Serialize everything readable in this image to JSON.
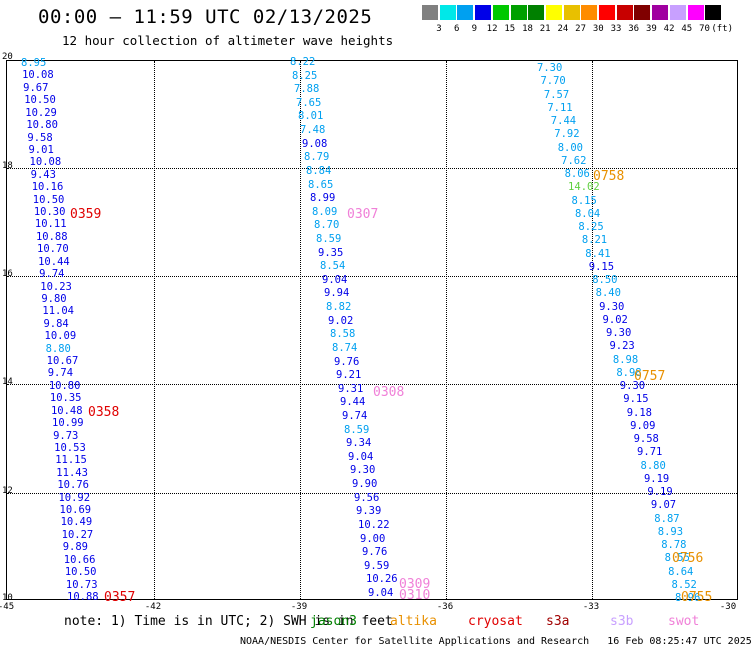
{
  "header": {
    "title": "00:00 – 11:59 UTC 02/13/2025",
    "subtitle": "12 hour collection of altimeter wave heights"
  },
  "scale": {
    "colors": [
      "#808080",
      "#00e8e8",
      "#00a0f0",
      "#0000e8",
      "#00c800",
      "#00a000",
      "#008000",
      "#ffff00",
      "#e8c000",
      "#ff8c00",
      "#ff0000",
      "#c80000",
      "#800000",
      "#a000a0",
      "#c8a0ff",
      "#ff00ff",
      "#000000"
    ],
    "labels": [
      "3",
      "6",
      "9",
      "12",
      "15",
      "18",
      "21",
      "24",
      "27",
      "30",
      "33",
      "36",
      "39",
      "42",
      "45",
      "70",
      "(ft)"
    ]
  },
  "axes": {
    "x_ticks": [
      "-45",
      "-42",
      "-39",
      "-36",
      "-33",
      "-30"
    ],
    "y_ticks": [
      "20",
      "18",
      "16",
      "14",
      "12",
      "10"
    ]
  },
  "tracks": [
    {
      "values": [
        "8.95",
        "10.08",
        "9.67",
        "10.50",
        "10.29",
        "10.80",
        "9.58",
        "9.01",
        "10.08",
        "9.43",
        "10.16",
        "10.50",
        "10.30",
        "10.11",
        "10.88",
        "10.70",
        "10.44",
        "9.74",
        "10.23",
        "9.80",
        "11.04",
        "9.84",
        "10.09",
        "8.80",
        "10.67",
        "9.74",
        "10.80",
        "10.35",
        "10.48",
        "10.99",
        "9.73",
        "10.53",
        "11.15",
        "11.43",
        "10.76",
        "10.92",
        "10.69",
        "10.49",
        "10.27",
        "9.89",
        "10.66",
        "10.50",
        "10.73",
        "10.88"
      ],
      "colors": [
        "#00a0f0",
        "#0000e8",
        "#0000e8",
        "#0000e8",
        "#0000e8",
        "#0000e8",
        "#0000e8",
        "#0000e8",
        "#0000e8",
        "#0000e8",
        "#0000e8",
        "#0000e8",
        "#0000e8",
        "#0000e8",
        "#0000e8",
        "#0000e8",
        "#0000e8",
        "#0000e8",
        "#0000e8",
        "#0000e8",
        "#0000e8",
        "#0000e8",
        "#0000e8",
        "#00a0f0",
        "#0000e8",
        "#0000e8",
        "#0000e8",
        "#0000e8",
        "#0000e8",
        "#0000e8",
        "#0000e8",
        "#0000e8",
        "#0000e8",
        "#0000e8",
        "#0000e8",
        "#0000e8",
        "#0000e8",
        "#0000e8",
        "#0000e8",
        "#0000e8",
        "#0000e8",
        "#0000e8",
        "#0000e8",
        "#0000e8"
      ],
      "labels": [
        {
          "text": "0359",
          "color": "#e00000"
        },
        {
          "text": "0358",
          "color": "#e00000"
        },
        {
          "text": "0357",
          "color": "#e00000"
        }
      ]
    },
    {
      "values": [
        "8.22",
        "8.25",
        "7.88",
        "7.65",
        "8.01",
        "7.48",
        "9.08",
        "8.79",
        "8.84",
        "8.65",
        "8.99",
        "8.09",
        "8.70",
        "8.59",
        "9.35",
        "8.54",
        "9.04",
        "9.94",
        "8.82",
        "9.02",
        "8.58",
        "8.74",
        "9.76",
        "9.21",
        "9.31",
        "9.44",
        "9.74",
        "8.59",
        "9.34",
        "9.04",
        "9.30",
        "9.90",
        "9.56",
        "9.39",
        "10.22",
        "9.00",
        "9.76",
        "9.59",
        "10.26",
        "9.04"
      ],
      "colors": [
        "#00a0f0",
        "#00a0f0",
        "#00a0f0",
        "#00a0f0",
        "#00a0f0",
        "#00a0f0",
        "#0000e8",
        "#00a0f0",
        "#00a0f0",
        "#00a0f0",
        "#0000e8",
        "#00a0f0",
        "#00a0f0",
        "#00a0f0",
        "#0000e8",
        "#00a0f0",
        "#0000e8",
        "#0000e8",
        "#00a0f0",
        "#0000e8",
        "#00a0f0",
        "#00a0f0",
        "#0000e8",
        "#0000e8",
        "#0000e8",
        "#0000e8",
        "#0000e8",
        "#00a0f0",
        "#0000e8",
        "#0000e8",
        "#0000e8",
        "#0000e8",
        "#0000e8",
        "#0000e8",
        "#0000e8",
        "#0000e8",
        "#0000e8",
        "#0000e8",
        "#0000e8",
        "#0000e8"
      ],
      "labels": [
        {
          "text": "0307",
          "color": "#f080d8"
        },
        {
          "text": "0308",
          "color": "#f080d8"
        },
        {
          "text": "0309",
          "color": "#f080d8"
        },
        {
          "text": "0310",
          "color": "#f080d8"
        }
      ]
    },
    {
      "values": [
        "7.30",
        "7.70",
        "7.57",
        "7.11",
        "7.44",
        "7.92",
        "8.00",
        "7.62",
        "8.06",
        "14.02",
        "8.15",
        "8.04",
        "8.25",
        "8.21",
        "8.41",
        "9.15",
        "8.50",
        "8.40",
        "9.30",
        "9.02",
        "9.30",
        "9.23",
        "8.98",
        "8.98",
        "9.30",
        "9.15",
        "9.18",
        "9.09",
        "9.58",
        "9.71",
        "8.80",
        "9.19",
        "9.19",
        "9.07",
        "8.87",
        "8.93",
        "8.78",
        "8.55",
        "8.64",
        "8.52",
        "8.96"
      ],
      "colors": [
        "#00a0f0",
        "#00a0f0",
        "#00a0f0",
        "#00a0f0",
        "#00a0f0",
        "#00a0f0",
        "#00a0f0",
        "#00a0f0",
        "#00a0f0",
        "#60d040",
        "#00a0f0",
        "#00a0f0",
        "#00a0f0",
        "#00a0f0",
        "#00a0f0",
        "#0000e8",
        "#00a0f0",
        "#00a0f0",
        "#0000e8",
        "#0000e8",
        "#0000e8",
        "#0000e8",
        "#00a0f0",
        "#00a0f0",
        "#0000e8",
        "#0000e8",
        "#0000e8",
        "#0000e8",
        "#0000e8",
        "#0000e8",
        "#00a0f0",
        "#0000e8",
        "#0000e8",
        "#0000e8",
        "#00a0f0",
        "#00a0f0",
        "#00a0f0",
        "#00a0f0",
        "#00a0f0",
        "#00a0f0",
        "#00a0f0"
      ],
      "labels": [
        {
          "text": "0758",
          "color": "#e89000"
        },
        {
          "text": "0757",
          "color": "#e89000"
        },
        {
          "text": "0756",
          "color": "#e89000"
        },
        {
          "text": "0755",
          "color": "#e89000"
        }
      ]
    }
  ],
  "footer": {
    "note": "note: 1) Time is in UTC; 2) SWH is in feet",
    "satellites": [
      {
        "name": "jason3",
        "color": "#008000"
      },
      {
        "name": "altika",
        "color": "#e89000"
      },
      {
        "name": "cryosat",
        "color": "#e00000"
      },
      {
        "name": "s3a",
        "color": "#a00000"
      },
      {
        "name": "s3b",
        "color": "#c8a0ff"
      },
      {
        "name": "swot",
        "color": "#f080d8"
      }
    ],
    "credit": "NOAA/NESDIS Center for Satellite Applications and Research",
    "generated": "16 Feb 08:25:47 UTC 2025"
  }
}
